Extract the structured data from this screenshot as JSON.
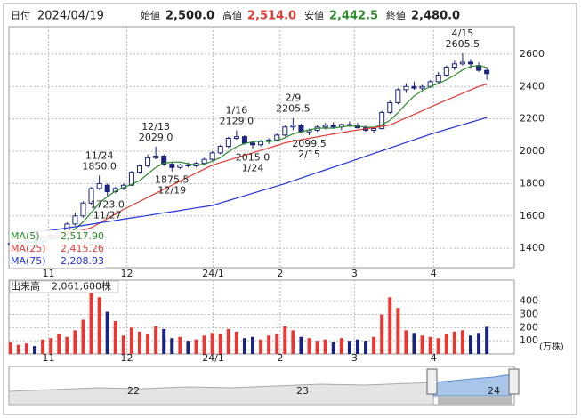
{
  "header": {
    "date_label": "日付",
    "date": "2024/04/19",
    "open_label": "始値",
    "open": "2,500.0",
    "high_label": "高値",
    "high": "2,514.0",
    "low_label": "安値",
    "low": "2,442.5",
    "close_label": "終値",
    "close": "2,480.0"
  },
  "chart_data": [
    {
      "type": "candlestick",
      "ohlc": [
        [
          1420,
          1440,
          1410,
          1430
        ],
        [
          1430,
          1445,
          1420,
          1438
        ],
        [
          1438,
          1450,
          1425,
          1445
        ],
        [
          1445,
          1460,
          1435,
          1440
        ],
        [
          1440,
          1470,
          1435,
          1465
        ],
        [
          1465,
          1490,
          1455,
          1480
        ],
        [
          1480,
          1510,
          1470,
          1500
        ],
        [
          1500,
          1560,
          1495,
          1550
        ],
        [
          1550,
          1620,
          1540,
          1600
        ],
        [
          1600,
          1690,
          1590,
          1680
        ],
        [
          1680,
          1780,
          1670,
          1770
        ],
        [
          1770,
          1850,
          1760,
          1800
        ],
        [
          1790,
          1800,
          1723,
          1750
        ],
        [
          1750,
          1780,
          1740,
          1770
        ],
        [
          1770,
          1800,
          1760,
          1790
        ],
        [
          1790,
          1880,
          1785,
          1870
        ],
        [
          1870,
          1920,
          1860,
          1910
        ],
        [
          1910,
          1980,
          1900,
          1960
        ],
        [
          1960,
          2029,
          1950,
          1970
        ],
        [
          1970,
          1980,
          1910,
          1920
        ],
        [
          1920,
          1930,
          1875.5,
          1900
        ],
        [
          1900,
          1925,
          1890,
          1915
        ],
        [
          1915,
          1930,
          1900,
          1910
        ],
        [
          1910,
          1935,
          1900,
          1925
        ],
        [
          1925,
          1960,
          1915,
          1950
        ],
        [
          1950,
          2000,
          1940,
          1990
        ],
        [
          1990,
          2040,
          1980,
          2030
        ],
        [
          2030,
          2090,
          2020,
          2080
        ],
        [
          2080,
          2129,
          2070,
          2090
        ],
        [
          2090,
          2100,
          2040,
          2050
        ],
        [
          2050,
          2065,
          2015,
          2040
        ],
        [
          2040,
          2070,
          2030,
          2060
        ],
        [
          2060,
          2080,
          2045,
          2070
        ],
        [
          2070,
          2110,
          2060,
          2100
        ],
        [
          2100,
          2160,
          2090,
          2150
        ],
        [
          2150,
          2205.5,
          2130,
          2160
        ],
        [
          2160,
          2170,
          2110,
          2120
        ],
        [
          2120,
          2140,
          2099.5,
          2130
        ],
        [
          2130,
          2160,
          2120,
          2150
        ],
        [
          2150,
          2175,
          2135,
          2160
        ],
        [
          2160,
          2180,
          2140,
          2150
        ],
        [
          2150,
          2170,
          2130,
          2165
        ],
        [
          2165,
          2185,
          2150,
          2160
        ],
        [
          2160,
          2175,
          2140,
          2145
        ],
        [
          2145,
          2160,
          2120,
          2130
        ],
        [
          2130,
          2150,
          2110,
          2140
        ],
        [
          2140,
          2250,
          2135,
          2240
        ],
        [
          2240,
          2320,
          2230,
          2300
        ],
        [
          2300,
          2390,
          2290,
          2380
        ],
        [
          2380,
          2420,
          2360,
          2400
        ],
        [
          2400,
          2430,
          2380,
          2390
        ],
        [
          2390,
          2410,
          2370,
          2400
        ],
        [
          2400,
          2440,
          2390,
          2430
        ],
        [
          2430,
          2490,
          2420,
          2470
        ],
        [
          2470,
          2530,
          2460,
          2520
        ],
        [
          2520,
          2560,
          2500,
          2540
        ],
        [
          2540,
          2605.5,
          2530,
          2550
        ],
        [
          2550,
          2570,
          2510,
          2540
        ],
        [
          2530,
          2550,
          2490,
          2500
        ],
        [
          2500,
          2514,
          2442.5,
          2480
        ]
      ],
      "up_color": "#ffffff",
      "down_color": "#1a237e",
      "edge_color": "#1a237e",
      "series": [
        {
          "name": "MA(5)",
          "legend_value": "2,517.90",
          "color": "#2e8b2e",
          "values": [
            1425,
            1430,
            1435,
            1438,
            1444,
            1454,
            1466,
            1487,
            1519,
            1563,
            1620,
            1680,
            1720,
            1754,
            1776,
            1796,
            1818,
            1860,
            1900,
            1926,
            1932,
            1933,
            1923,
            1914,
            1920,
            1938,
            1961,
            1997,
            2028,
            2048,
            2058,
            2064,
            2062,
            2064,
            2084,
            2108,
            2120,
            2132,
            2142,
            2144,
            2142,
            2151,
            2157,
            2156,
            2150,
            2148,
            2163,
            2191,
            2238,
            2292,
            2342,
            2374,
            2400,
            2418,
            2442,
            2470,
            2502,
            2524,
            2530,
            2517.9
          ]
        },
        {
          "name": "MA(25)",
          "legend_value": "2,415.26",
          "color": "#e53935",
          "values": [
            1450,
            1455,
            1460,
            1465,
            1470,
            1476,
            1482,
            1490,
            1500,
            1512,
            1527,
            1555,
            1583,
            1611,
            1640,
            1665,
            1690,
            1715,
            1740,
            1765,
            1790,
            1815,
            1840,
            1865,
            1890,
            1914,
            1930,
            1945,
            1960,
            1975,
            1990,
            2005,
            2020,
            2036,
            2052,
            2062,
            2071,
            2080,
            2089,
            2098,
            2107,
            2115,
            2124,
            2131,
            2139,
            2146,
            2154,
            2162,
            2184,
            2206,
            2228,
            2250,
            2273,
            2295,
            2316,
            2337,
            2358,
            2379,
            2400,
            2415.26
          ]
        },
        {
          "name": "MA(75)",
          "legend_value": "2,208.93",
          "color": "#2233dd",
          "values": [
            1490,
            1494,
            1498,
            1502,
            1506,
            1510,
            1518,
            1526,
            1533,
            1541,
            1549,
            1557,
            1564,
            1572,
            1580,
            1588,
            1595,
            1603,
            1611,
            1619,
            1626,
            1634,
            1642,
            1650,
            1657,
            1665,
            1680,
            1695,
            1710,
            1725,
            1740,
            1755,
            1770,
            1785,
            1800,
            1817,
            1834,
            1851,
            1868,
            1885,
            1902,
            1918,
            1935,
            1952,
            1969,
            1986,
            2003,
            2020,
            2037,
            2054,
            2071,
            2088,
            2105,
            2120,
            2135,
            2150,
            2164,
            2179,
            2194,
            2208.93
          ]
        }
      ],
      "annotations": [
        {
          "date": "11/24",
          "value": 1850,
          "label": "1850.0",
          "index": 11,
          "side": "high"
        },
        {
          "date": "11/27",
          "value": 1723,
          "label": "1723.0",
          "index": 12,
          "side": "low"
        },
        {
          "date": "12/13",
          "value": 2029,
          "label": "2029.0",
          "index": 18,
          "side": "high"
        },
        {
          "date": "12/19",
          "value": 1875.5,
          "label": "1875.5",
          "index": 20,
          "side": "low"
        },
        {
          "date": "1/16",
          "value": 2129,
          "label": "2129.0",
          "index": 28,
          "side": "high"
        },
        {
          "date": "1/24",
          "value": 2015,
          "label": "2015.0",
          "index": 30,
          "side": "low"
        },
        {
          "date": "2/9",
          "value": 2205.5,
          "label": "2205.5",
          "index": 35,
          "side": "high"
        },
        {
          "date": "2/15",
          "value": 2099.5,
          "label": "2099.5",
          "index": 37,
          "side": "low"
        },
        {
          "date": "4/15",
          "value": 2605.5,
          "label": "2605.5",
          "index": 56,
          "side": "high"
        }
      ],
      "xlim": [
        -0.2,
        62.4
      ],
      "xticks": [
        {
          "value": 4.7,
          "label": "11"
        },
        {
          "value": 14.4,
          "label": "12"
        },
        {
          "value": 25.1,
          "label": "24/1"
        },
        {
          "value": 33.4,
          "label": "2"
        },
        {
          "value": 42.6,
          "label": "3"
        },
        {
          "value": 52.4,
          "label": "4"
        }
      ],
      "ylim": [
        1280,
        2770
      ],
      "yticks": [
        1400,
        1600,
        1800,
        2000,
        2200,
        2400,
        2600
      ],
      "grid": true
    },
    {
      "type": "volume",
      "title": "出来高",
      "legend_value": "2,061,600株",
      "y_unit": "(万株)",
      "values": [
        90,
        70,
        80,
        60,
        110,
        120,
        150,
        130,
        180,
        260,
        470,
        430,
        320,
        250,
        140,
        200,
        170,
        150,
        210,
        190,
        120,
        130,
        100,
        110,
        140,
        160,
        150,
        190,
        170,
        120,
        130,
        110,
        140,
        150,
        210,
        180,
        130,
        120,
        100,
        110,
        90,
        120,
        100,
        110,
        100,
        130,
        300,
        430,
        350,
        180,
        160,
        140,
        130,
        120,
        150,
        170,
        180,
        140,
        160,
        206.16
      ],
      "up_color": "#e53935",
      "down_color": "#1a237e",
      "xlim": [
        -0.2,
        62.4
      ],
      "xticks": [
        {
          "value": 4.7,
          "label": "11"
        },
        {
          "value": 14.4,
          "label": "12"
        },
        {
          "value": 25.1,
          "label": "24/1"
        },
        {
          "value": 33.4,
          "label": "2"
        },
        {
          "value": 42.6,
          "label": "3"
        },
        {
          "value": 52.4,
          "label": "4"
        }
      ],
      "ylim": [
        0,
        560
      ],
      "yticks": [
        100,
        200,
        300,
        400
      ],
      "grid": true
    }
  ],
  "navigator": {
    "labels": [
      "22",
      "23",
      "24"
    ]
  }
}
